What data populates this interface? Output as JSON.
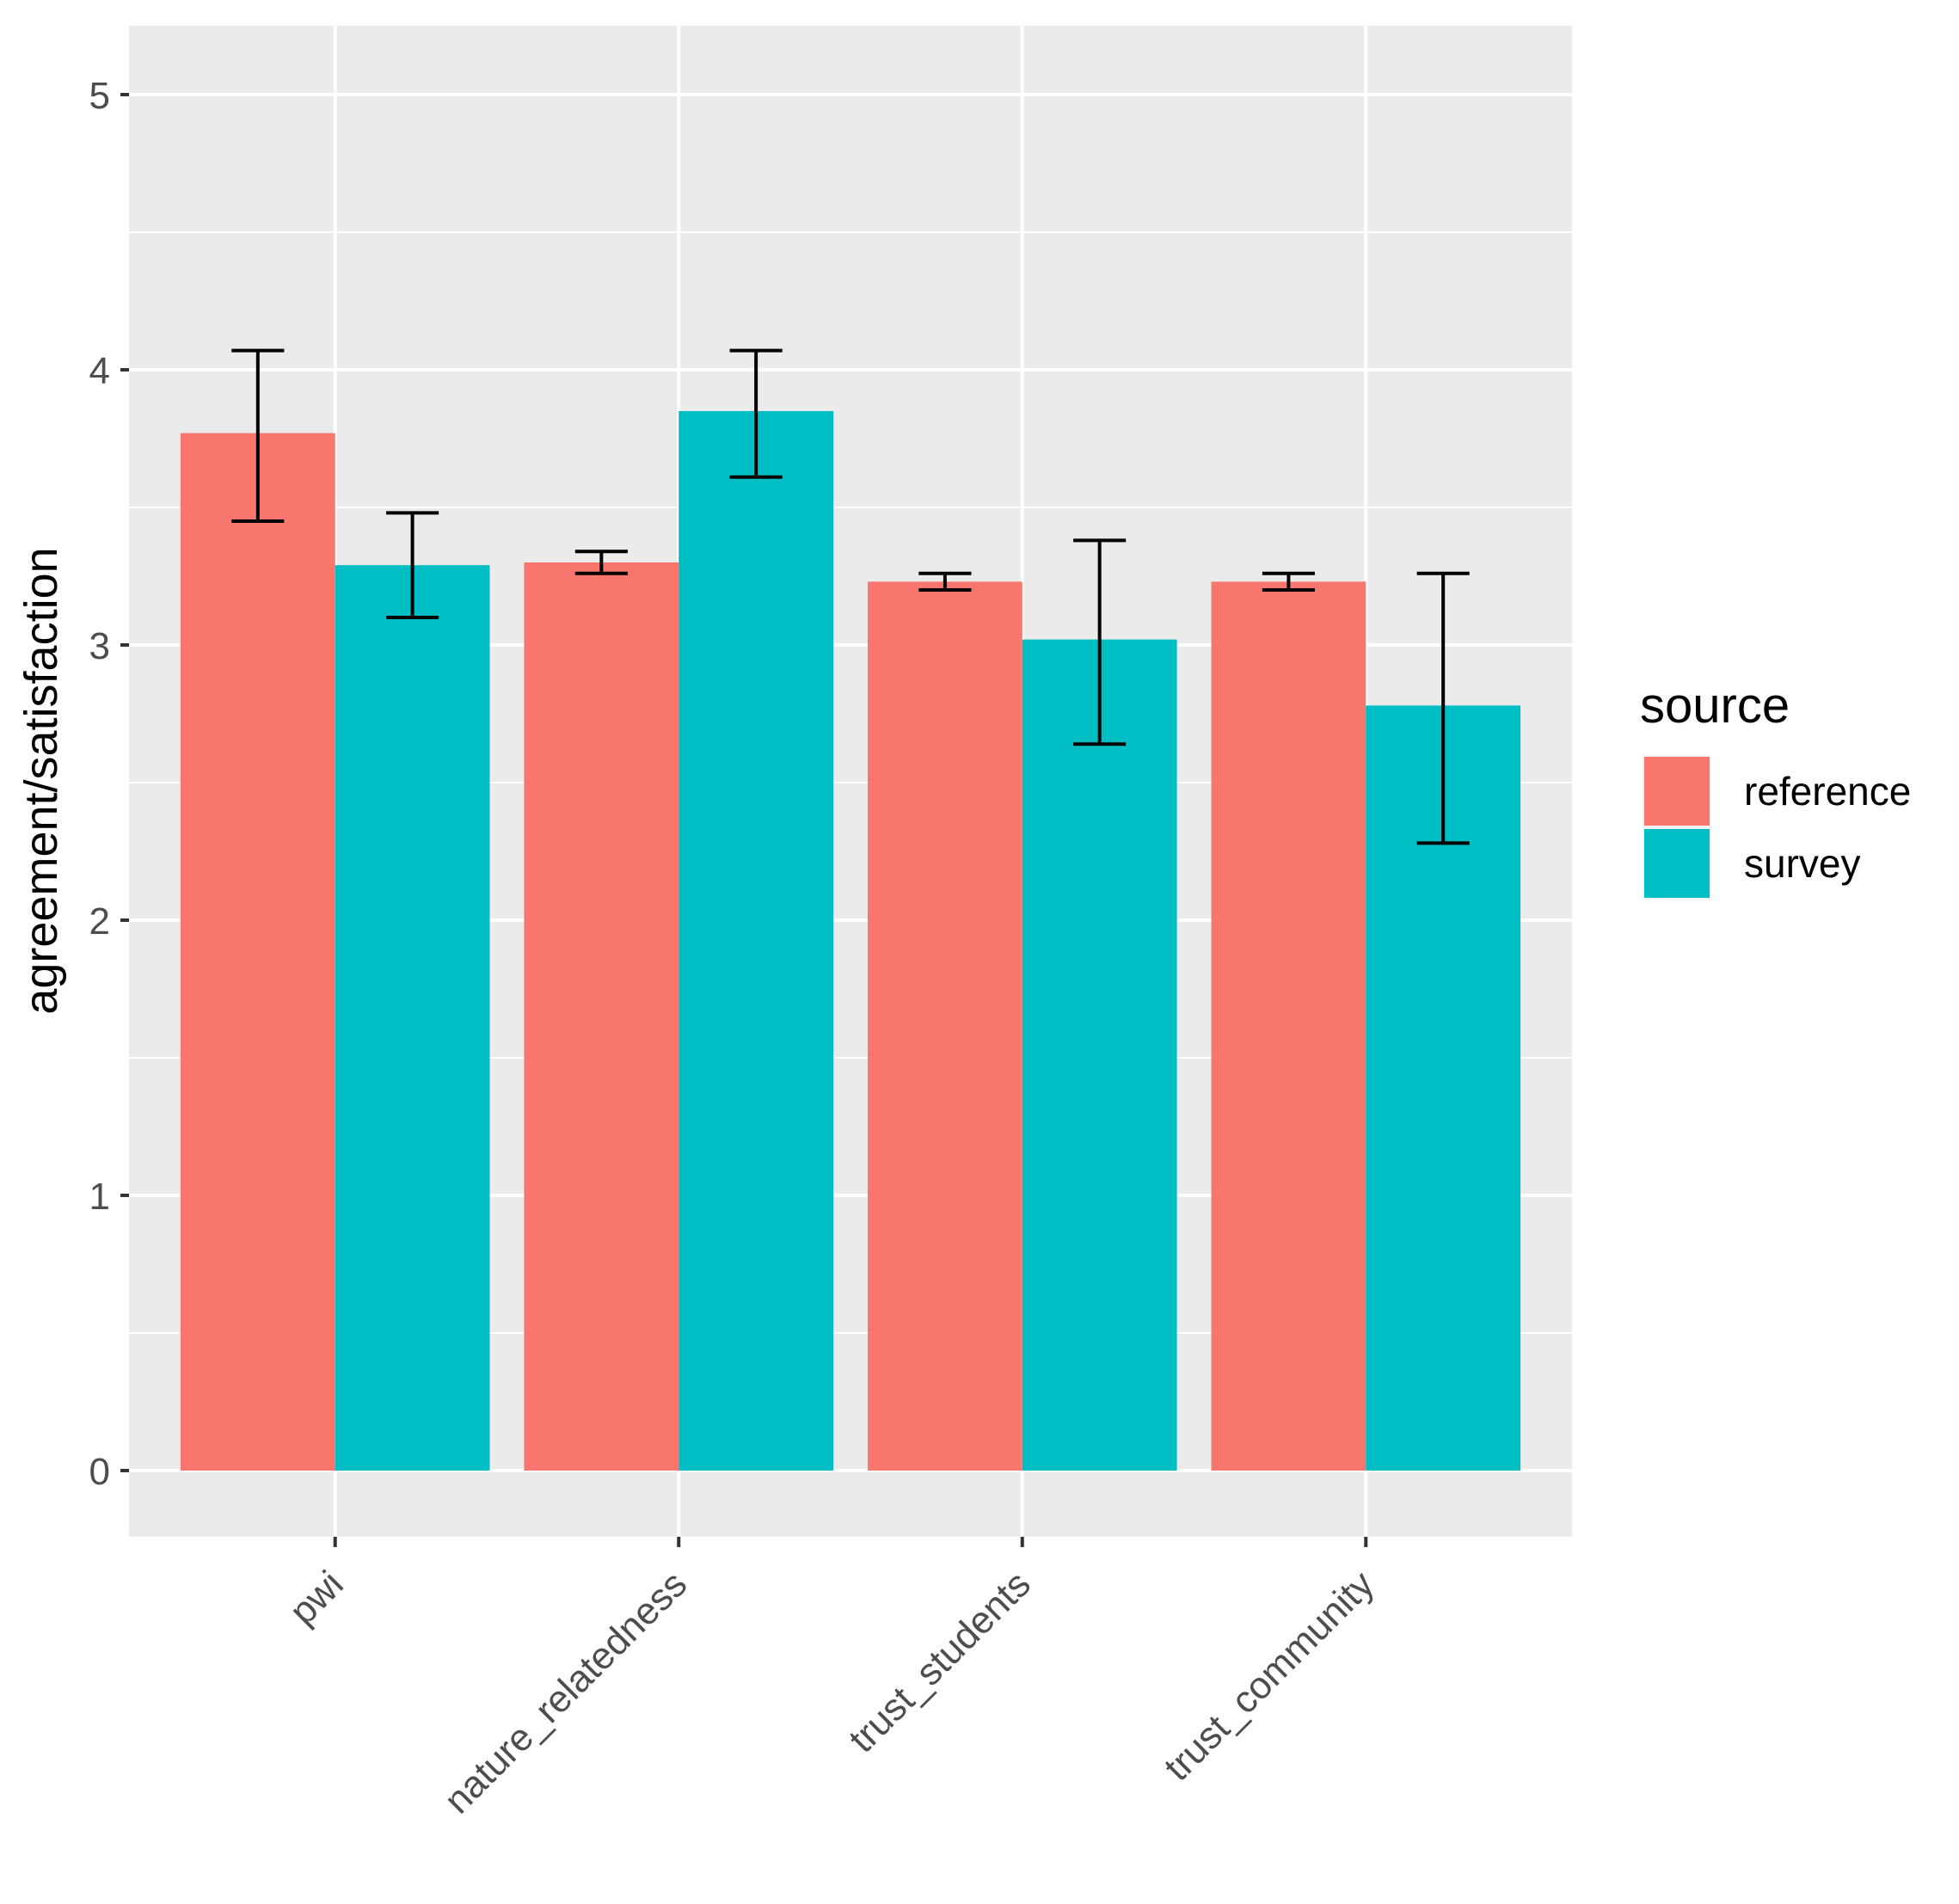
{
  "chart_data": {
    "type": "bar",
    "title": "",
    "xlabel": "",
    "ylabel": "agreement/satisfaction",
    "ylim": [
      0,
      5.2
    ],
    "yticks": [
      0,
      1,
      2,
      3,
      4,
      5
    ],
    "grid": true,
    "categories": [
      "pwi",
      "nature_relatedness",
      "trust_students",
      "trust_community"
    ],
    "series": [
      {
        "name": "reference",
        "color": "#F8766D",
        "values": [
          3.77,
          3.3,
          3.23,
          3.23
        ],
        "error_low": [
          3.45,
          3.26,
          3.2,
          3.2
        ],
        "error_high": [
          4.07,
          3.34,
          3.26,
          3.26
        ]
      },
      {
        "name": "survey",
        "color": "#00BFC4",
        "values": [
          3.29,
          3.85,
          3.02,
          2.78
        ],
        "error_low": [
          3.1,
          3.61,
          2.64,
          2.28
        ],
        "error_high": [
          3.48,
          4.07,
          3.38,
          3.26
        ]
      }
    ],
    "legend": {
      "title": "source",
      "position": "right"
    }
  }
}
